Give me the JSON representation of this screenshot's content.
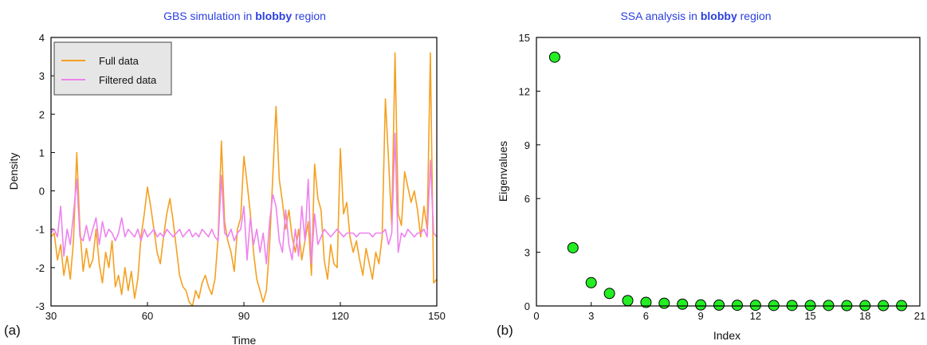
{
  "colors": {
    "full": "#f5a020",
    "filtered": "#ee82ee",
    "marker": "#22ee22",
    "title": "#2b3fe0"
  },
  "chart_data": [
    {
      "type": "line",
      "panel_label": "(a)",
      "title_prefix": "GBS simulation in ",
      "title_bold": "blobby",
      "title_suffix": " region",
      "xlabel": "Time",
      "ylabel": "Density",
      "xlim": [
        30,
        150
      ],
      "ylim": [
        -3,
        4
      ],
      "xticks": [
        "30",
        "60",
        "90",
        "120",
        "150"
      ],
      "yticks": [
        "-3",
        "-2",
        "-1",
        "0",
        "1",
        "2",
        "3",
        "4"
      ],
      "legend_position": "top-left",
      "series": [
        {
          "name": "Full data",
          "x": [
            30,
            31,
            32,
            33,
            34,
            35,
            36,
            37,
            38,
            39,
            40,
            41,
            42,
            43,
            44,
            45,
            46,
            47,
            48,
            49,
            50,
            51,
            52,
            53,
            54,
            55,
            56,
            57,
            58,
            59,
            60,
            61,
            62,
            63,
            64,
            65,
            66,
            67,
            68,
            69,
            70,
            71,
            72,
            73,
            74,
            75,
            76,
            77,
            78,
            79,
            80,
            81,
            82,
            83,
            84,
            85,
            86,
            87,
            88,
            89,
            90,
            91,
            92,
            93,
            94,
            95,
            96,
            97,
            98,
            99,
            100,
            101,
            102,
            103,
            104,
            105,
            106,
            107,
            108,
            109,
            110,
            111,
            112,
            113,
            114,
            115,
            116,
            117,
            118,
            119,
            120,
            121,
            122,
            123,
            124,
            125,
            126,
            127,
            128,
            129,
            130,
            131,
            132,
            133,
            134,
            135,
            136,
            137,
            138,
            139,
            140,
            141,
            142,
            143,
            144,
            145,
            146,
            147,
            148,
            149,
            150
          ],
          "values": [
            -1.2,
            -1.1,
            -1.8,
            -1.4,
            -2.2,
            -1.7,
            -2.3,
            -1.3,
            1.0,
            -1.0,
            -2.1,
            -1.5,
            -2.0,
            -1.8,
            -1.0,
            -1.9,
            -2.4,
            -1.6,
            -2.0,
            -1.3,
            -2.5,
            -2.2,
            -2.7,
            -2.0,
            -2.6,
            -2.1,
            -2.8,
            -2.3,
            -1.2,
            -0.6,
            0.1,
            -0.4,
            -1.0,
            -1.6,
            -1.9,
            -1.2,
            -0.6,
            -0.2,
            -0.8,
            -1.5,
            -2.2,
            -2.5,
            -2.6,
            -2.9,
            -3.0,
            -2.6,
            -2.8,
            -2.4,
            -2.2,
            -2.5,
            -2.7,
            -2.3,
            -1.2,
            1.3,
            -0.8,
            -1.3,
            -1.6,
            -2.1,
            -1.0,
            -0.7,
            0.9,
            0.2,
            -0.6,
            -1.6,
            -2.3,
            -2.6,
            -2.9,
            -2.6,
            -1.4,
            0.4,
            2.2,
            0.3,
            -0.3,
            -1.0,
            -0.5,
            -1.2,
            -1.6,
            -1.0,
            -1.8,
            -1.3,
            -0.8,
            -2.2,
            0.7,
            -0.2,
            -0.5,
            -1.8,
            -2.3,
            -1.4,
            -1.9,
            -2.0,
            1.1,
            -0.6,
            -0.3,
            -1.2,
            -1.6,
            -1.3,
            -1.8,
            -2.2,
            -1.5,
            -1.9,
            -2.3,
            -1.6,
            -1.9,
            -1.2,
            2.4,
            0.8,
            -0.9,
            3.6,
            -0.6,
            -0.9,
            0.5,
            0.1,
            -0.3,
            0.0,
            -0.5,
            -1.2,
            -0.4,
            -1.0,
            3.6,
            -2.4,
            -2.3
          ]
        },
        {
          "name": "Filtered data",
          "x": [
            30,
            31,
            32,
            33,
            34,
            35,
            36,
            37,
            38,
            39,
            40,
            41,
            42,
            43,
            44,
            45,
            46,
            47,
            48,
            49,
            50,
            51,
            52,
            53,
            54,
            55,
            56,
            57,
            58,
            59,
            60,
            61,
            62,
            63,
            64,
            65,
            66,
            67,
            68,
            69,
            70,
            71,
            72,
            73,
            74,
            75,
            76,
            77,
            78,
            79,
            80,
            81,
            82,
            83,
            84,
            85,
            86,
            87,
            88,
            89,
            90,
            91,
            92,
            93,
            94,
            95,
            96,
            97,
            98,
            99,
            100,
            101,
            102,
            103,
            104,
            105,
            106,
            107,
            108,
            109,
            110,
            111,
            112,
            113,
            114,
            115,
            116,
            117,
            118,
            119,
            120,
            121,
            122,
            123,
            124,
            125,
            126,
            127,
            128,
            129,
            130,
            131,
            132,
            133,
            134,
            135,
            136,
            137,
            138,
            139,
            140,
            141,
            142,
            143,
            144,
            145,
            146,
            147,
            148,
            149,
            150
          ],
          "values": [
            -1.1,
            -1.0,
            -1.2,
            -0.4,
            -1.7,
            -1.0,
            -1.4,
            -0.6,
            0.3,
            -1.2,
            -1.3,
            -0.9,
            -1.3,
            -1.0,
            -0.7,
            -1.4,
            -0.8,
            -1.2,
            -1.0,
            -1.1,
            -1.3,
            -1.1,
            -0.7,
            -1.2,
            -1.0,
            -1.1,
            -1.2,
            -1.0,
            -1.3,
            -1.0,
            -1.2,
            -1.1,
            -1.0,
            -1.2,
            -1.1,
            -1.2,
            -1.0,
            -1.1,
            -1.2,
            -1.1,
            -1.0,
            -1.2,
            -1.1,
            -1.0,
            -1.2,
            -1.1,
            -1.2,
            -1.0,
            -1.1,
            -1.2,
            -1.0,
            -1.2,
            -1.3,
            0.4,
            -1.1,
            -1.2,
            -1.0,
            -1.3,
            -1.1,
            -1.0,
            -0.4,
            -1.8,
            -0.7,
            -1.4,
            -1.0,
            -1.6,
            -1.1,
            -1.9,
            -0.8,
            -0.1,
            -0.4,
            -1.3,
            -1.6,
            -0.5,
            -1.4,
            -1.8,
            -1.0,
            -1.7,
            -0.4,
            -1.3,
            0.3,
            -1.9,
            -0.6,
            -1.4,
            -1.2,
            -1.0,
            -1.1,
            -1.2,
            -1.1,
            -1.0,
            -1.1,
            -1.2,
            -1.1,
            -1.1,
            -1.1,
            -1.2,
            -1.1,
            -1.1,
            -1.1,
            -1.1,
            -1.2,
            -1.1,
            -1.1,
            -1.1,
            -1.0,
            -1.4,
            -1.1,
            1.5,
            -1.6,
            -1.1,
            -1.2,
            -1.0,
            -1.1,
            -1.2,
            -1.1,
            -1.1,
            -1.0,
            -1.2,
            0.8,
            -1.1,
            -1.2
          ]
        }
      ]
    },
    {
      "type": "scatter",
      "panel_label": "(b)",
      "title_prefix": "SSA analysis in ",
      "title_bold": "blobby",
      "title_suffix": " region",
      "xlabel": "Index",
      "ylabel": "Eigenvalues",
      "xlim": [
        0,
        21
      ],
      "ylim": [
        0,
        15
      ],
      "xticks": [
        "0",
        "3",
        "6",
        "9",
        "12",
        "15",
        "18",
        "21"
      ],
      "yticks": [
        "0",
        "3",
        "6",
        "9",
        "12",
        "15"
      ],
      "x": [
        1,
        2,
        3,
        4,
        5,
        6,
        7,
        8,
        9,
        10,
        11,
        12,
        13,
        14,
        15,
        16,
        17,
        18,
        19,
        20
      ],
      "values": [
        13.9,
        3.25,
        1.3,
        0.7,
        0.3,
        0.2,
        0.15,
        0.1,
        0.06,
        0.05,
        0.04,
        0.04,
        0.03,
        0.03,
        0.03,
        0.03,
        0.02,
        0.02,
        0.02,
        0.02
      ]
    }
  ]
}
